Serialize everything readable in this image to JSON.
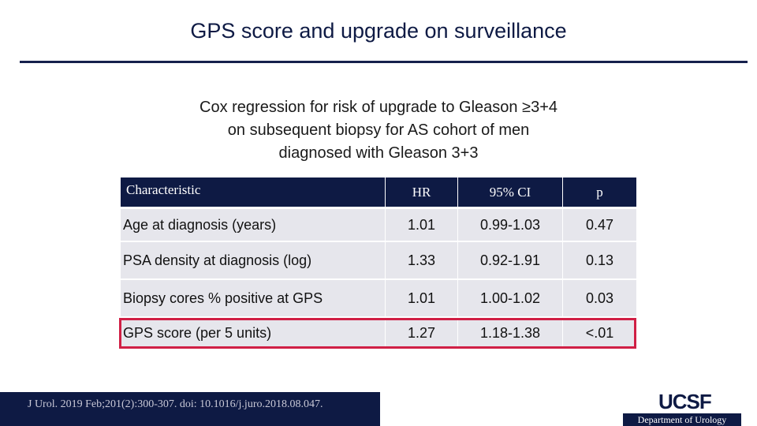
{
  "header": {
    "title": "GPS score and upgrade on surveillance"
  },
  "subtitle": [
    "Cox regression for risk of upgrade to Gleason ≥3+4",
    "on subsequent biopsy for AS cohort of men",
    "diagnosed with Gleason 3+3"
  ],
  "table": {
    "columns": [
      "Characteristic",
      "HR",
      "95% CI",
      "p"
    ],
    "rows": [
      [
        "Age at diagnosis (years)",
        "1.01",
        "0.99-1.03",
        "0.47"
      ],
      [
        "PSA density at diagnosis (log)",
        "1.33",
        "0.92-1.91",
        "0.13"
      ],
      [
        "Biopsy cores % positive at GPS",
        "1.01",
        "1.00-1.02",
        "0.03"
      ],
      [
        "GPS score (per 5 units)",
        "1.27",
        "1.18-1.38",
        "<.01"
      ]
    ]
  },
  "footer": {
    "citation": "J Urol. 2019 Feb;201(2):300-307. doi: 10.1016/j.juro.2018.08.047.",
    "logo": "UCSF",
    "department": "Department of Urology"
  }
}
